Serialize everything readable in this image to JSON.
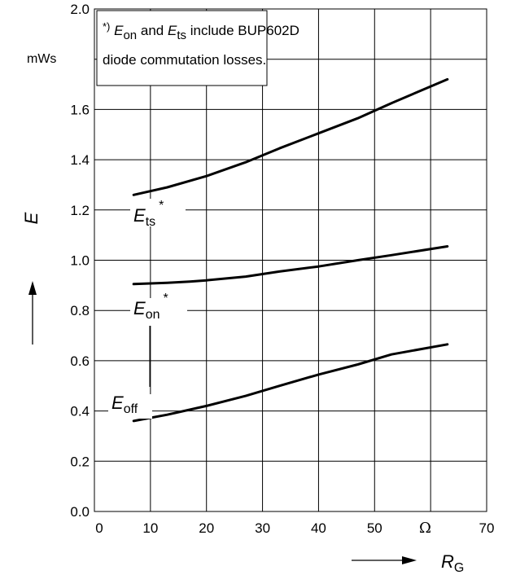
{
  "chart_data": {
    "type": "line",
    "x_unit": "Ω",
    "y_unit": "mWs",
    "xlabel_symbol": "R",
    "xlabel_sub": "G",
    "ylabel": "E",
    "xlim": [
      0,
      70
    ],
    "ylim": [
      0,
      2.0
    ],
    "x_ticks": [
      "0",
      "10",
      "20",
      "30",
      "40",
      "50",
      "70"
    ],
    "y_ticks": [
      "0.0",
      "0.2",
      "0.4",
      "0.6",
      "0.8",
      "1.0",
      "1.2",
      "1.4",
      "1.6",
      "2.0"
    ],
    "grid": true,
    "note": {
      "prefix": "*)",
      "e1": "E",
      "e1_sub": "on",
      "and": " and ",
      "e2": "E",
      "e2_sub": "ts",
      "rest": " include BUP602D",
      "line2": "diode commutation losses."
    },
    "series": [
      {
        "name": "Ets*",
        "label_main": "E",
        "label_sub": "ts",
        "label_sup": "*",
        "x": [
          7,
          13,
          20,
          27,
          33,
          40,
          47,
          53,
          63
        ],
        "y": [
          1.26,
          1.29,
          1.335,
          1.39,
          1.445,
          1.505,
          1.565,
          1.625,
          1.72
        ]
      },
      {
        "name": "Eon*",
        "label_main": "E",
        "label_sub": "on",
        "label_sup": "*",
        "x": [
          7,
          13,
          17,
          20,
          27,
          33,
          40,
          47,
          53,
          63
        ],
        "y": [
          0.905,
          0.91,
          0.915,
          0.92,
          0.935,
          0.955,
          0.975,
          1.0,
          1.02,
          1.055
        ]
      },
      {
        "name": "Eoff",
        "label_main": "E",
        "label_sub": "off",
        "label_sup": "",
        "x": [
          7,
          13,
          20,
          27,
          33,
          40,
          47,
          53,
          63
        ],
        "y": [
          0.36,
          0.385,
          0.42,
          0.46,
          0.5,
          0.545,
          0.585,
          0.625,
          0.665
        ]
      }
    ]
  }
}
